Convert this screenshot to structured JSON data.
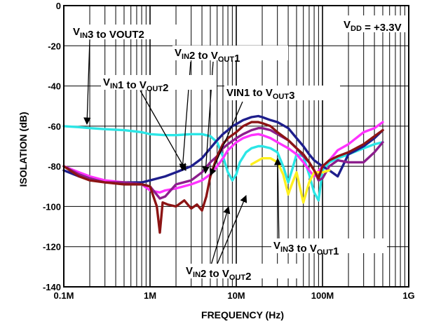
{
  "chart_data": {
    "type": "line",
    "title": "",
    "xlabel": "FREQUENCY (Hz)",
    "ylabel": "ISOLATION (dB)",
    "xscale": "log",
    "xlim": [
      100000,
      1000000000
    ],
    "ylim": [
      -140,
      0
    ],
    "grid": true,
    "x_ticks": [
      "0.1M",
      "1M",
      "10M",
      "100M",
      "1G"
    ],
    "y_ticks": [
      "0",
      "-20",
      "-40",
      "-60",
      "-80",
      "-100",
      "-120",
      "-140"
    ],
    "condition": {
      "main": "V",
      "sub": "DD",
      "rest": " = +3.3V"
    },
    "annotations": [
      {
        "parts": [
          {
            "t": "V"
          },
          {
            "t": "IN",
            "s": true
          },
          {
            "t": "3 to VOUT2"
          }
        ]
      },
      {
        "parts": [
          {
            "t": "V"
          },
          {
            "t": "IN",
            "s": true
          },
          {
            "t": "2 to V"
          },
          {
            "t": "OUT",
            "s": true
          },
          {
            "t": "1"
          }
        ]
      },
      {
        "parts": [
          {
            "t": "V"
          },
          {
            "t": "IN",
            "s": true
          },
          {
            "t": "1 to V"
          },
          {
            "t": "OUT",
            "s": true
          },
          {
            "t": "2"
          }
        ]
      },
      {
        "parts": [
          {
            "t": "VIN1 to V"
          },
          {
            "t": "OUT",
            "s": true
          },
          {
            "t": "3"
          }
        ]
      },
      {
        "parts": [
          {
            "t": "V"
          },
          {
            "t": "IN",
            "s": true
          },
          {
            "t": "3 to V"
          },
          {
            "t": "OUT",
            "s": true
          },
          {
            "t": "1"
          }
        ]
      },
      {
        "parts": [
          {
            "t": "V"
          },
          {
            "t": "IN",
            "s": true
          },
          {
            "t": "2 to V"
          },
          {
            "t": "OUT",
            "s": true
          },
          {
            "t": "2"
          }
        ]
      }
    ],
    "series": [
      {
        "color": "#2BE6E6",
        "x": [
          0.1,
          0.15,
          0.2,
          0.3,
          0.5,
          0.8,
          1,
          1.5,
          2,
          3,
          4,
          5,
          6,
          7,
          8,
          9,
          10,
          11,
          13,
          15,
          18,
          20,
          25,
          30,
          35,
          40,
          45,
          50,
          60,
          70,
          80,
          90,
          100,
          120,
          150,
          200,
          300,
          400,
          500
        ],
        "y": [
          -60,
          -60.5,
          -61,
          -61.5,
          -62,
          -63,
          -64,
          -64.5,
          -64.5,
          -64,
          -64,
          -65,
          -68,
          -75,
          -83,
          -87,
          -84,
          -78,
          -73,
          -71,
          -70,
          -70,
          -71,
          -73,
          -80,
          -88,
          -81,
          -74,
          -75,
          -84,
          -93,
          -97,
          -82,
          -78,
          -76,
          -74,
          -71,
          -69,
          -68
        ]
      },
      {
        "color": "#1E1E8C",
        "x": [
          0.1,
          0.15,
          0.2,
          0.3,
          0.5,
          0.8,
          1,
          1.5,
          2,
          3,
          4,
          5,
          6,
          7,
          8,
          9,
          10,
          12,
          15,
          18,
          20,
          25,
          30,
          40,
          50,
          60,
          70,
          80,
          100,
          120,
          150,
          200,
          300,
          400,
          500
        ],
        "y": [
          -82,
          -85,
          -86,
          -88,
          -88,
          -88,
          -87,
          -85,
          -83,
          -80,
          -76,
          -71,
          -67,
          -64,
          -62,
          -60,
          -59,
          -57,
          -55.5,
          -55,
          -55.5,
          -57,
          -58,
          -61,
          -66,
          -70,
          -74,
          -77,
          -80,
          -82,
          -85,
          -74,
          -70,
          -66,
          -62
        ]
      },
      {
        "color": "#FF32FF",
        "x": [
          0.1,
          0.15,
          0.2,
          0.3,
          0.5,
          0.8,
          1,
          1.3,
          1.5,
          2,
          3,
          4,
          5,
          6,
          7,
          8,
          10,
          12,
          15,
          18,
          20,
          25,
          30,
          40,
          50,
          60,
          70,
          80,
          100,
          120,
          150,
          200,
          300,
          400,
          500
        ],
        "y": [
          -80,
          -83,
          -85,
          -87,
          -88,
          -89,
          -92,
          -93,
          -92,
          -91,
          -89,
          -87,
          -84,
          -80,
          -76,
          -72,
          -68,
          -66,
          -64.5,
          -64,
          -64.5,
          -66,
          -68,
          -71,
          -74,
          -78,
          -82,
          -85,
          -80,
          -77,
          -72,
          -69,
          -63,
          -61,
          -58
        ]
      },
      {
        "color": "#8C1E8C",
        "x": [
          0.1,
          0.15,
          0.2,
          0.3,
          0.5,
          0.8,
          1,
          1.3,
          1.5,
          2,
          3,
          4,
          5,
          6,
          7,
          8,
          10,
          12,
          15,
          18,
          20,
          25,
          30,
          40,
          50,
          60,
          70,
          80,
          90,
          100,
          120,
          150,
          200,
          300,
          400,
          500
        ],
        "y": [
          -80,
          -84,
          -86,
          -88,
          -88,
          -89,
          -90,
          -96,
          -95,
          -89,
          -87,
          -83,
          -78,
          -75,
          -71,
          -69,
          -66,
          -64,
          -62,
          -61,
          -61,
          -62,
          -64,
          -67,
          -71,
          -75,
          -78,
          -82,
          -87,
          -86,
          -80,
          -77,
          -78,
          -78,
          -73,
          -68
        ]
      },
      {
        "color": "#FFF01E",
        "x": [
          15,
          20,
          25,
          30,
          35,
          40,
          45,
          50,
          60,
          70,
          80,
          100,
          120
        ],
        "y": [
          -79,
          -76,
          -76,
          -78,
          -84,
          -94,
          -88,
          -83,
          -98,
          -88,
          -83,
          -83,
          -82
        ]
      },
      {
        "color": "#8C1414",
        "x": [
          0.1,
          0.15,
          0.2,
          0.3,
          0.5,
          0.8,
          1,
          1.2,
          1.3,
          1.4,
          1.6,
          2,
          2.5,
          3,
          3.5,
          4,
          4.5,
          5,
          6,
          7,
          8,
          10,
          12,
          15,
          18,
          20,
          25,
          30,
          40,
          50,
          60,
          70,
          80,
          90,
          100,
          120,
          150,
          200,
          300,
          400,
          500
        ],
        "y": [
          -80,
          -85,
          -87,
          -88,
          -89,
          -89,
          -90,
          -100,
          -113,
          -98,
          -99,
          -100,
          -97,
          -101,
          -99,
          -102,
          -95,
          -85,
          -75,
          -69,
          -66,
          -63,
          -60,
          -58,
          -58,
          -58.5,
          -60,
          -63,
          -67,
          -71,
          -74,
          -78,
          -82,
          -86,
          -80,
          -77,
          -75,
          -73,
          -69,
          -65,
          -62
        ]
      }
    ]
  }
}
